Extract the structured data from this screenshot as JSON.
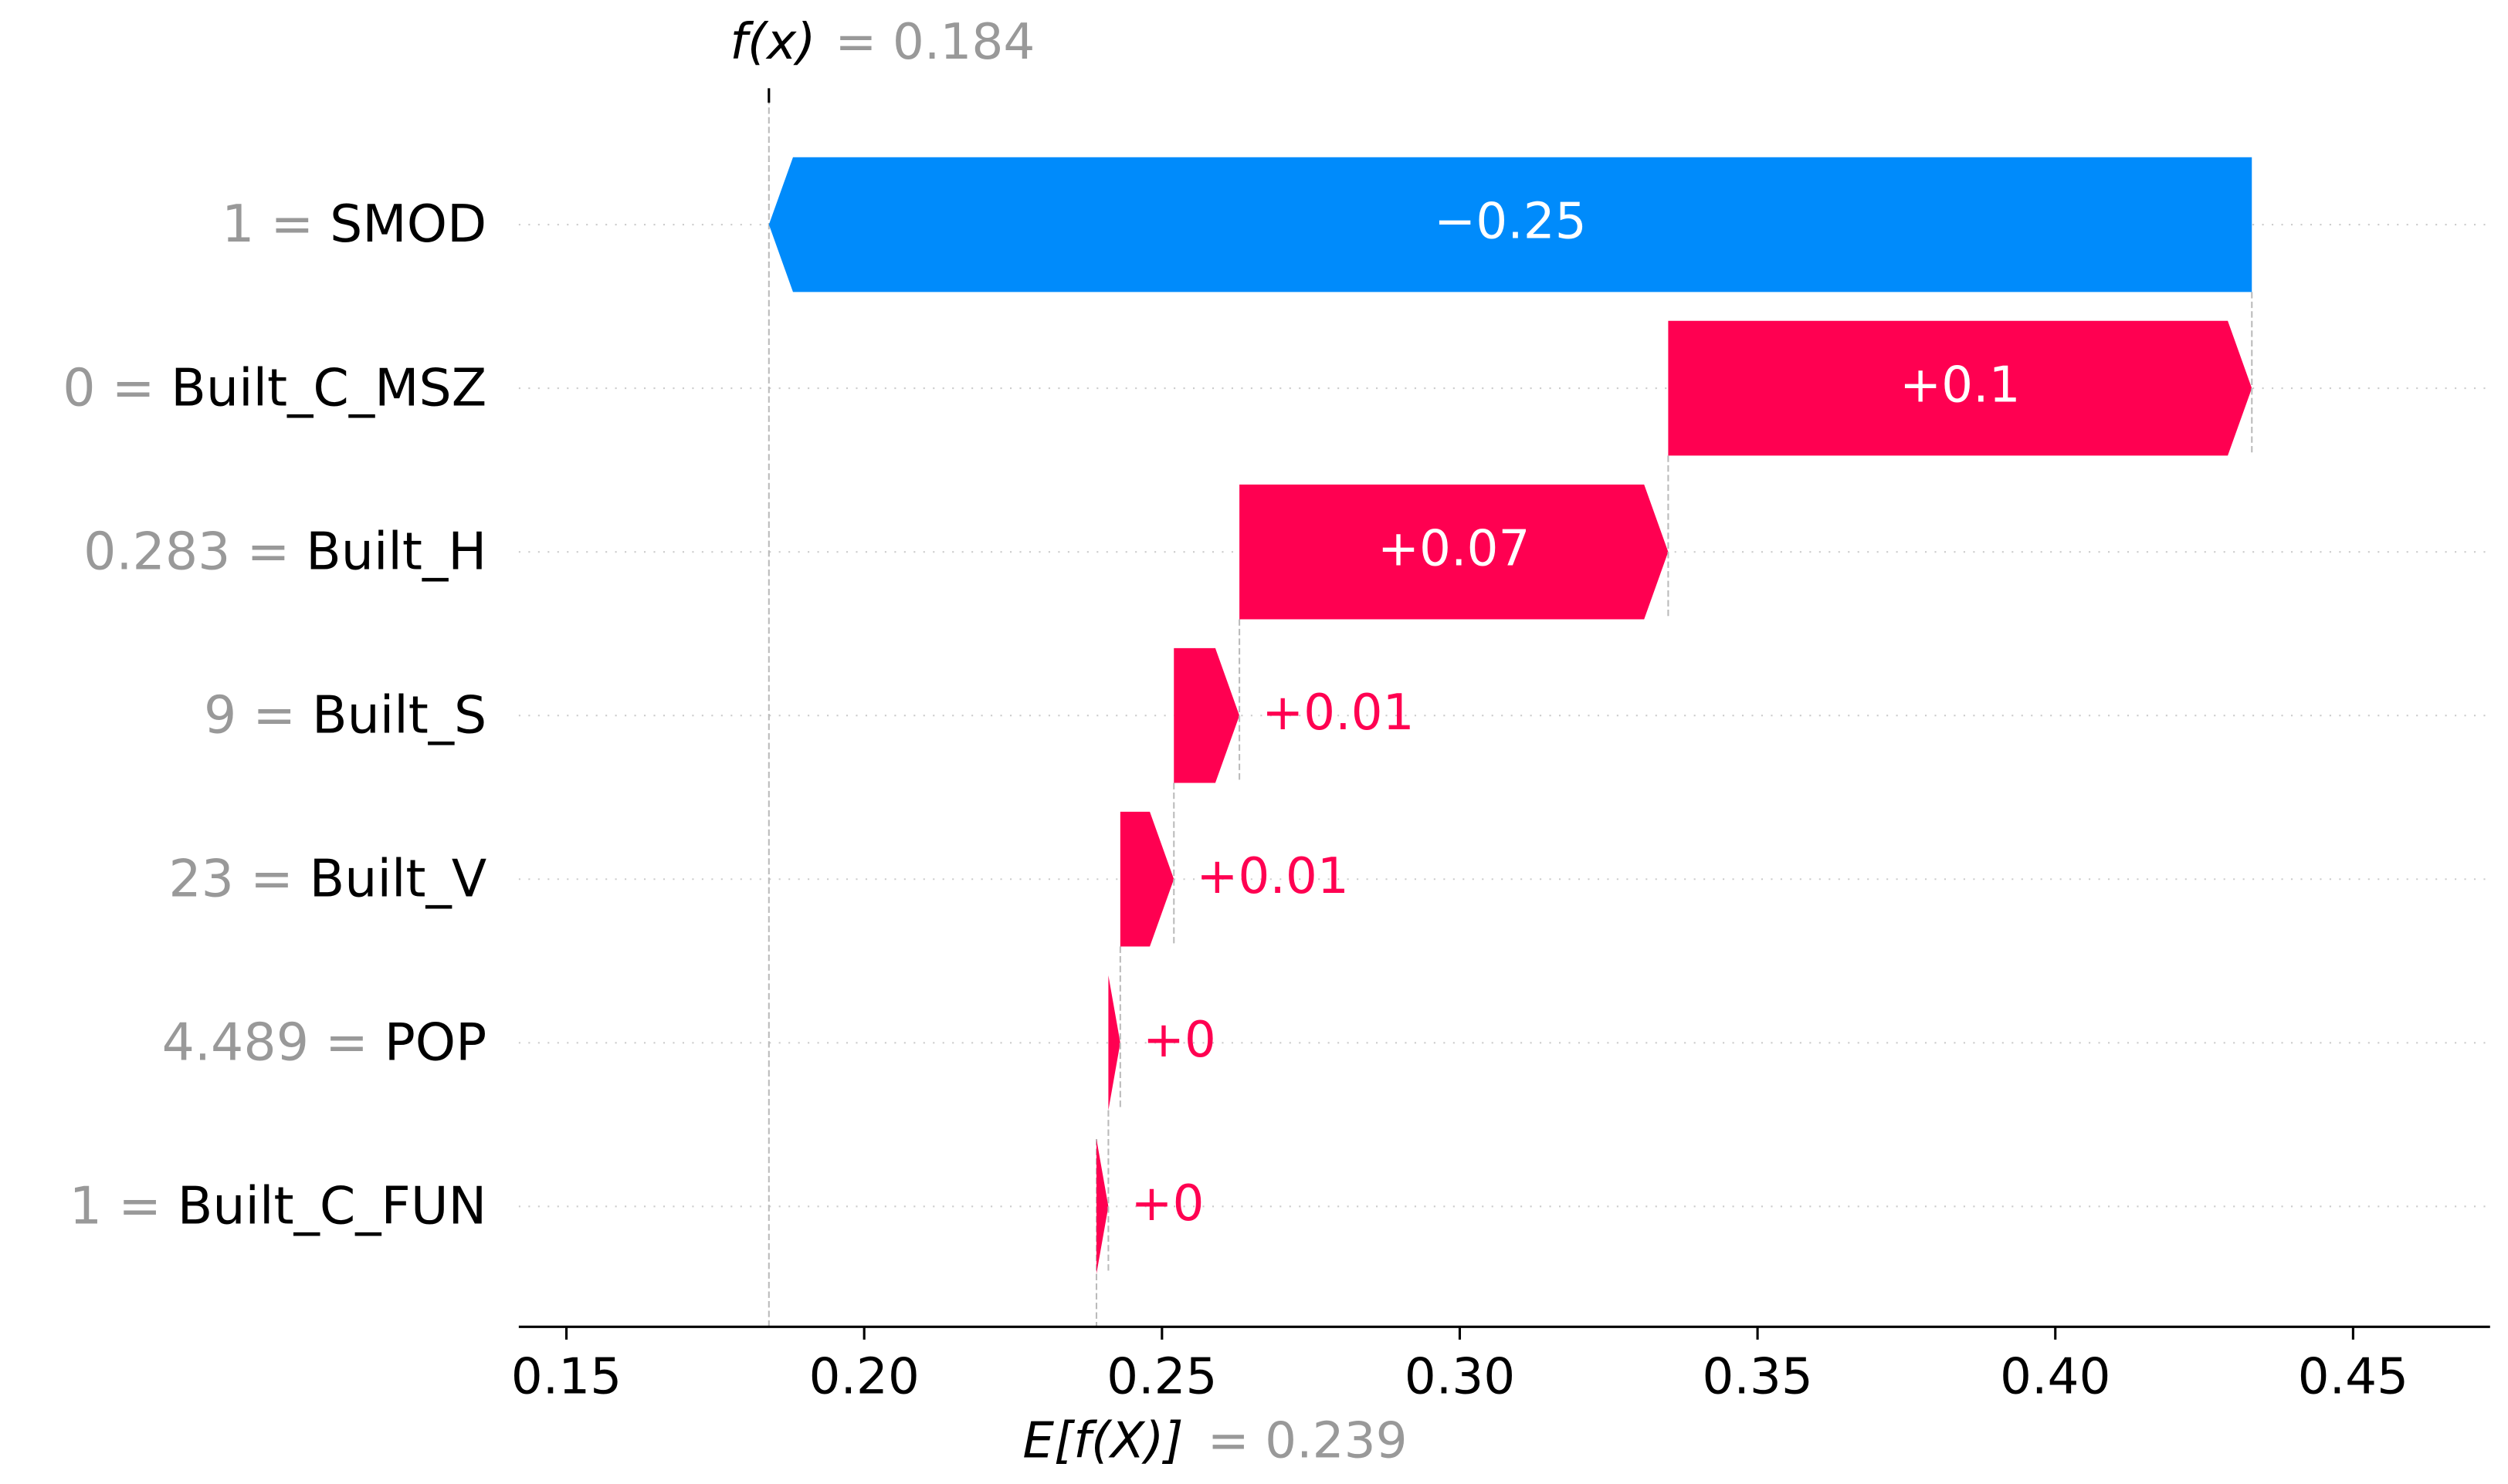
{
  "chart_data": {
    "type": "waterfall",
    "features": [
      "SMOD",
      "Built_C_MSZ",
      "Built_H",
      "Built_S",
      "Built_V",
      "POP",
      "Built_C_FUN"
    ],
    "feature_labels": [
      "1 =",
      "0 =",
      "0.283 =",
      "9 =",
      "23 =",
      "4.489 =",
      "1 ="
    ],
    "values": [
      -0.249,
      0.098,
      0.072,
      0.011,
      0.009,
      0.002,
      0.002
    ],
    "value_labels": [
      "−0.25",
      "+0.1",
      "+0.07",
      "+0.01",
      "+0.01",
      "+0",
      "+0"
    ],
    "positive_color": "#ff0051",
    "negative_color": "#008bfb",
    "fx": {
      "label": "f(x)",
      "value": 0.184,
      "value_label": "= 0.184"
    },
    "base": {
      "label": "E[f(X)]",
      "value": 0.239,
      "value_label": "= 0.239"
    },
    "xlim": [
      0.142,
      0.473
    ],
    "xticks": [
      0.15,
      {
        "value": 0.2,
        "label": "0.20"
      },
      0.25,
      {
        "value": 0.3,
        "label": "0.30"
      },
      0.35,
      {
        "value": 0.4,
        "label": "0.40"
      },
      0.45
    ]
  }
}
